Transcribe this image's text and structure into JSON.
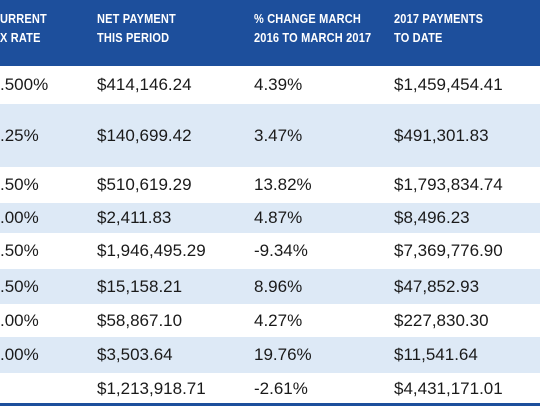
{
  "header": {
    "col1": [
      "URRENT",
      "X RATE"
    ],
    "col2": [
      "NET PAYMENT",
      "THIS PERIOD"
    ],
    "col3": [
      "% CHANGE MARCH",
      "2016 TO MARCH 2017"
    ],
    "col4": [
      "2017 PAYMENTS",
      "TO DATE"
    ]
  },
  "rows": [
    {
      "rate": ".500%",
      "net": "$414,146.24",
      "change": "4.39%",
      "ytd": "$1,459,454.41"
    },
    {
      "rate": ".25%",
      "net": "$140,699.42",
      "change": "3.47%",
      "ytd": "$491,301.83"
    },
    {
      "rate": ".50%",
      "net": "$510,619.29",
      "change": "13.82%",
      "ytd": "$1,793,834.74"
    },
    {
      "rate": ".00%",
      "net": "$2,411.83",
      "change": "4.87%",
      "ytd": "$8,496.23"
    },
    {
      "rate": ".50%",
      "net": "$1,946,495.29",
      "change": "-9.34%",
      "ytd": "$7,369,776.90"
    },
    {
      "rate": ".50%",
      "net": "$15,158.21",
      "change": "8.96%",
      "ytd": "$47,852.93"
    },
    {
      "rate": ".00%",
      "net": "$58,867.10",
      "change": "4.27%",
      "ytd": "$227,830.30"
    },
    {
      "rate": ".00%",
      "net": "$3,503.64",
      "change": "19.76%",
      "ytd": "$11,541.64"
    },
    {
      "rate": "",
      "net": "$1,213,918.71",
      "change": "-2.61%",
      "ytd": "$4,431,171.01"
    }
  ],
  "colors": {
    "header_bg": "#1d4f9c",
    "alt_row_bg": "#dde9f6"
  }
}
